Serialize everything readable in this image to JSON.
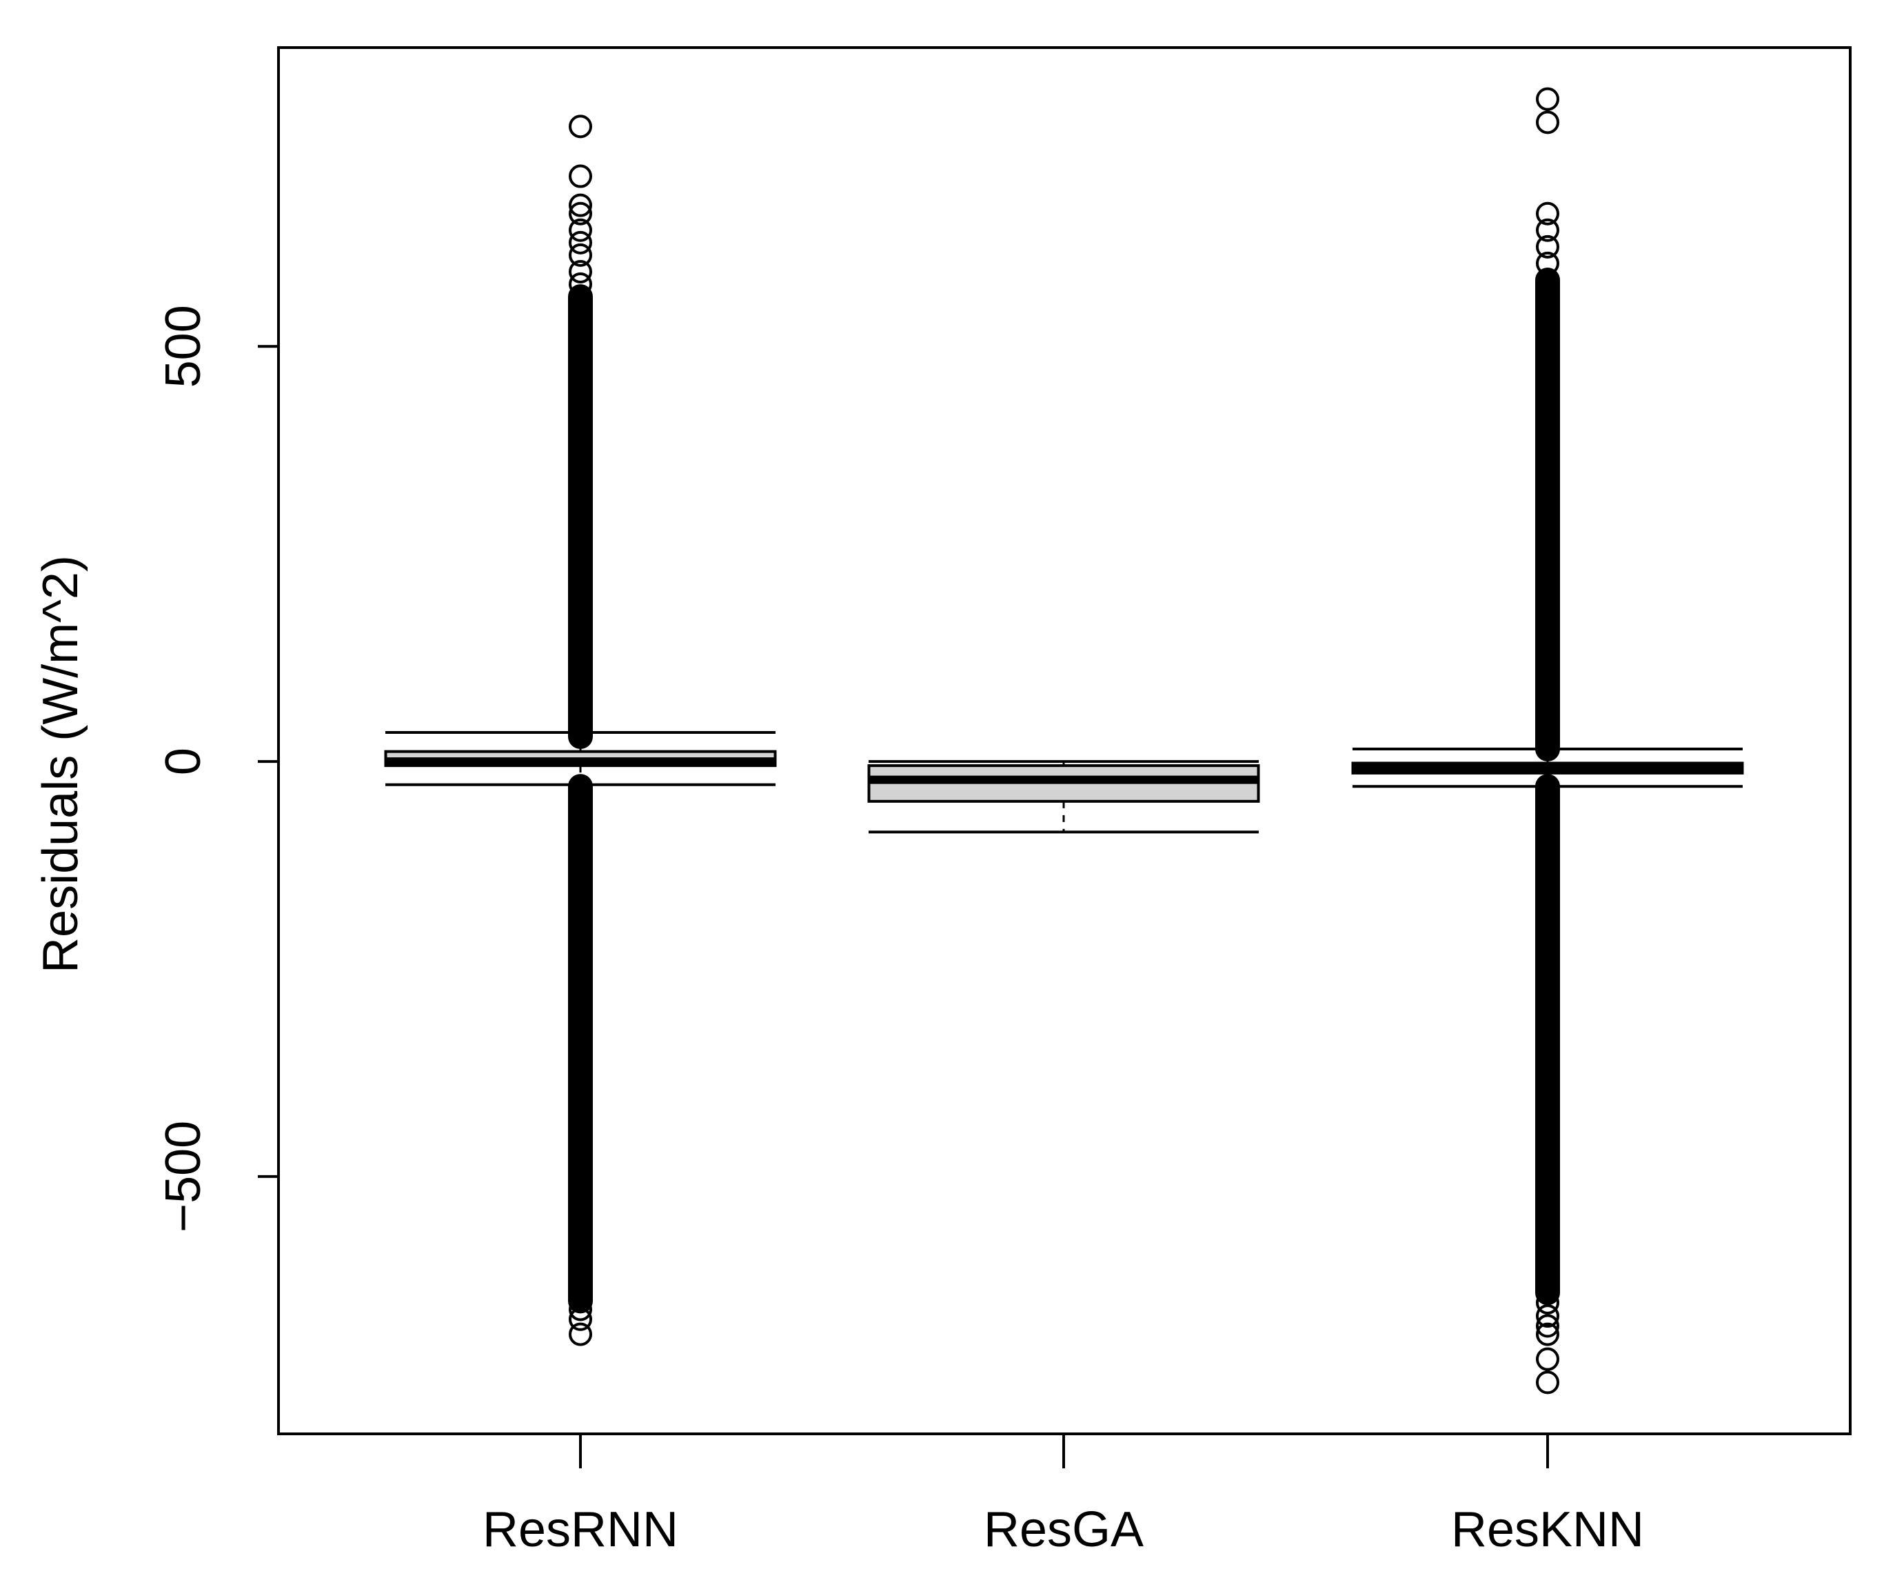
{
  "chart_data": {
    "type": "box",
    "title": "",
    "xlabel": "",
    "ylabel": "Residuals (W/m^2)",
    "ylim": [
      -810,
      860
    ],
    "yticks": [
      -500,
      0,
      500
    ],
    "grid": false,
    "legend": "none",
    "colors": {
      "box_fill": "#d3d3d3",
      "stroke": "#000000"
    },
    "categories": [
      "ResRNN",
      "ResGA",
      "ResKNN"
    ],
    "boxes": [
      {
        "name": "ResRNN",
        "whisker_low": -28,
        "q1": -5,
        "median": 0,
        "q3": 12,
        "whisker_high": 35,
        "outlier_bands": [
          [
            -650,
            -30
          ],
          [
            30,
            560
          ]
        ],
        "outliers": [
          -690,
          -672,
          -660,
          -648,
          -632,
          -618,
          -600,
          -585,
          -565,
          -545,
          -520,
          -500,
          -480,
          480,
          505,
          530,
          545,
          560,
          575,
          590,
          610,
          625,
          640,
          660,
          670,
          705,
          765
        ]
      },
      {
        "name": "ResGA",
        "whisker_low": -85,
        "q1": -48,
        "median": -22,
        "q3": -5,
        "whisker_high": 0,
        "outlier_bands": [],
        "outliers": []
      },
      {
        "name": "ResKNN",
        "whisker_low": -30,
        "q1": -14,
        "median": -8,
        "q3": -2,
        "whisker_high": 15,
        "outlier_bands": [
          [
            -640,
            -30
          ],
          [
            15,
            580
          ]
        ],
        "outliers": [
          -748,
          -720,
          -690,
          -680,
          -668,
          -652,
          -640,
          -622,
          -605,
          -590,
          -570,
          -545,
          -520,
          -500,
          520,
          550,
          580,
          600,
          620,
          640,
          660,
          770,
          798
        ]
      }
    ]
  }
}
